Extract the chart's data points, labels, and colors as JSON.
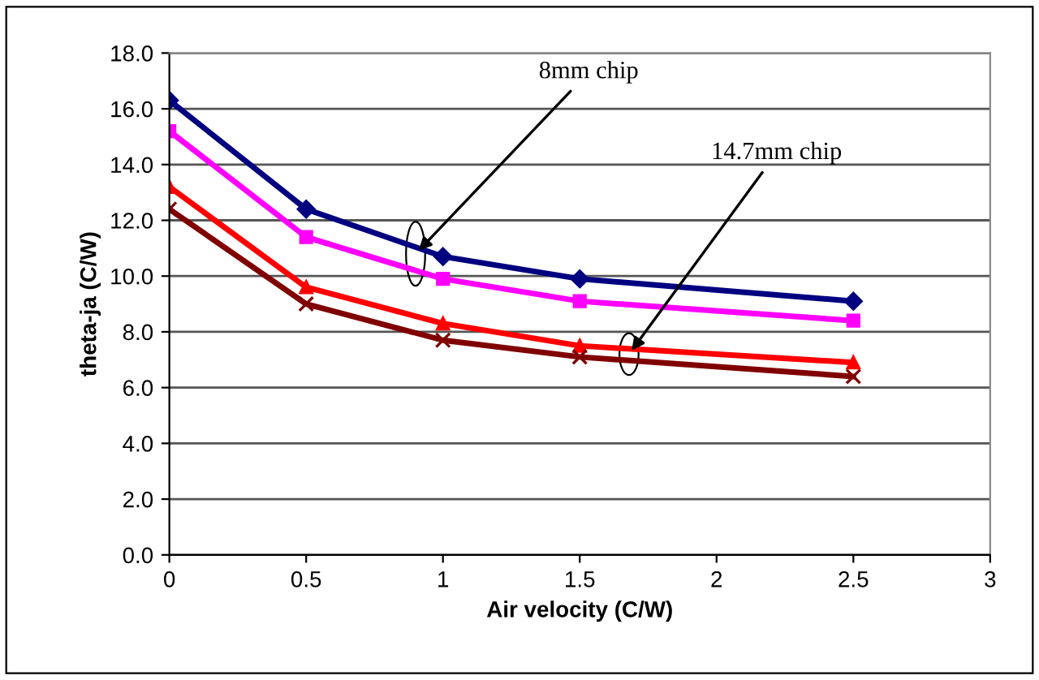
{
  "chart_data": {
    "type": "line",
    "xlabel": "Air velocity (C/W)",
    "ylabel": "theta-ja (C/W)",
    "x": [
      0,
      0.5,
      1,
      1.5,
      2.5
    ],
    "series": [
      {
        "color": "#000080",
        "values": [
          16.3,
          12.4,
          10.7,
          9.9,
          9.1
        ],
        "marker": "diamond"
      },
      {
        "color": "#ff00ff",
        "values": [
          15.2,
          11.4,
          9.9,
          9.1,
          8.4
        ],
        "marker": "square"
      },
      {
        "color": "#ff0000",
        "values": [
          13.2,
          9.6,
          8.3,
          7.5,
          6.9
        ],
        "marker": "triangle"
      },
      {
        "color": "#800000",
        "values": [
          12.4,
          9.0,
          7.7,
          7.1,
          6.4
        ],
        "marker": "cross"
      }
    ],
    "xlim": [
      0,
      3
    ],
    "xticks": [
      0,
      0.5,
      1,
      1.5,
      2,
      2.5,
      3
    ],
    "ylim": [
      0,
      18
    ],
    "yticks": [
      {
        "value": 0,
        "label": "0.0"
      },
      {
        "value": 2,
        "label": "2.0"
      },
      {
        "value": 4,
        "label": "4.0"
      },
      {
        "value": 6,
        "label": "6.0"
      },
      {
        "value": 8,
        "label": "8.0"
      },
      {
        "value": 10,
        "label": "10.0"
      },
      {
        "value": 12,
        "label": "12.0"
      },
      {
        "value": 14,
        "label": "14.0"
      },
      {
        "value": 16,
        "label": "16.0"
      },
      {
        "value": 18,
        "label": "18.0"
      }
    ],
    "grid": "y",
    "legend": false,
    "annotations": [
      {
        "text": "8mm chip",
        "x": 0.9,
        "y": 10.8
      },
      {
        "text": "14.7mm chip",
        "x": 1.68,
        "y": 7.2
      }
    ]
  }
}
